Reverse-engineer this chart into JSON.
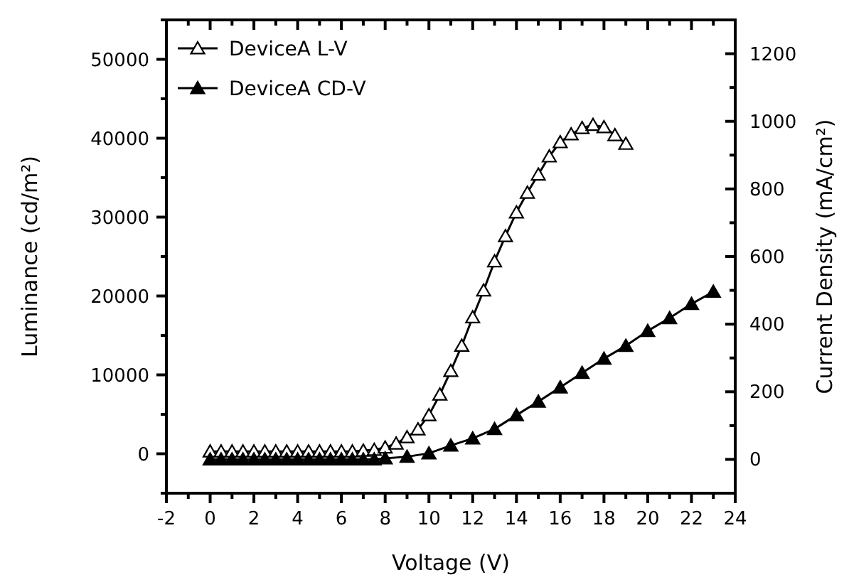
{
  "chart_data": {
    "type": "line",
    "xlabel": "Voltage (V)",
    "ylabel": "Luminance (cd/m²)",
    "y2label": "Current Density (mA/cm²)",
    "xlim": [
      -2,
      24
    ],
    "xticks": [
      -2,
      {
        "value": -1,
        "label": null
      },
      0,
      {
        "value": 1,
        "label": null
      },
      2,
      {
        "value": 3,
        "label": null
      },
      4,
      {
        "value": 5,
        "label": null
      },
      6,
      {
        "value": 7,
        "label": null
      },
      8,
      {
        "value": 9,
        "label": null
      },
      10,
      {
        "value": 11,
        "label": null
      },
      12,
      {
        "value": 13,
        "label": null
      },
      14,
      {
        "value": 15,
        "label": null
      },
      16,
      {
        "value": 17,
        "label": null
      },
      18,
      {
        "value": 19,
        "label": null
      },
      20,
      {
        "value": 21,
        "label": null
      },
      22,
      {
        "value": 23,
        "label": null
      },
      24
    ],
    "ylim": [
      -5000,
      55000
    ],
    "yticks": [
      {
        "value": -5000,
        "label": null
      },
      0,
      {
        "value": 5000,
        "label": null
      },
      10000,
      {
        "value": 15000,
        "label": null
      },
      20000,
      {
        "value": 25000,
        "label": null
      },
      30000,
      {
        "value": 35000,
        "label": null
      },
      40000,
      {
        "value": 45000,
        "label": null
      },
      50000,
      {
        "value": 55000,
        "label": null
      }
    ],
    "y2lim": [
      -100,
      1300
    ],
    "y2ticks": [
      {
        "value": -100,
        "label": null
      },
      0,
      {
        "value": 100,
        "label": null
      },
      200,
      {
        "value": 300,
        "label": null
      },
      400,
      {
        "value": 500,
        "label": null
      },
      600,
      {
        "value": 700,
        "label": null
      },
      800,
      {
        "value": 900,
        "label": null
      },
      1000,
      {
        "value": 1100,
        "label": null
      },
      1200,
      {
        "value": 1300,
        "label": null
      }
    ],
    "legend": "top left",
    "marker": "triangle",
    "line_style": "solid",
    "grid": false,
    "series": [
      {
        "name": "DeviceA L-V",
        "color": "#000000",
        "x": [
          0,
          0.5,
          1,
          1.5,
          2,
          2.5,
          3,
          3.5,
          4,
          4.5,
          5,
          5.5,
          6,
          6.5,
          7,
          7.5,
          8,
          8.5,
          9,
          9.5,
          10,
          10.5,
          11,
          11.5,
          12,
          12.5,
          13,
          13.5,
          14,
          14.5,
          15,
          15.5,
          16,
          16.5,
          17,
          17.5,
          18,
          18.5,
          19
        ],
        "values": [
          300,
          300,
          300,
          300,
          300,
          300,
          300,
          300,
          300,
          300,
          300,
          300,
          300,
          300,
          400,
          500,
          800,
          1300,
          2100,
          3100,
          4900,
          7500,
          10500,
          13700,
          17300,
          20700,
          24400,
          27600,
          30600,
          33100,
          35400,
          37700,
          39500,
          40500,
          41300,
          41700,
          41400,
          40400,
          39300
        ]
      },
      {
        "name": "DeviceA CD-V",
        "color": "#000000",
        "axis": "y2",
        "x": [
          0,
          0.5,
          1,
          1.5,
          2,
          2.5,
          3,
          3.5,
          4,
          4.5,
          5,
          5.5,
          6,
          6.5,
          7,
          7.5,
          8,
          9,
          10,
          11,
          12,
          13,
          14,
          15,
          16,
          17,
          18,
          19,
          20,
          21,
          22,
          23
        ],
        "values": [
          0,
          0,
          0,
          0,
          0,
          0,
          0,
          0,
          0,
          0,
          0,
          0,
          0,
          0,
          0,
          0,
          3,
          8,
          18,
          41,
          62,
          90,
          131,
          171,
          213,
          256,
          298,
          336,
          380,
          418,
          460,
          496
        ]
      }
    ]
  }
}
